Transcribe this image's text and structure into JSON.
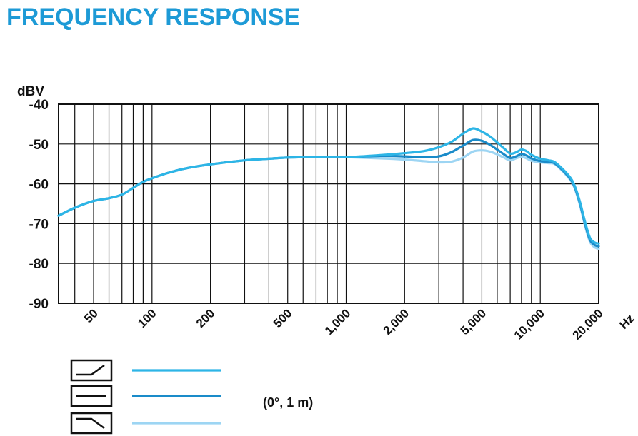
{
  "chart_data": {
    "type": "line",
    "title": "FREQUENCY RESPONSE",
    "ylabel": "dBV",
    "xlabel": "Hz",
    "xscale": "log",
    "xlim": [
      33,
      20000
    ],
    "ylim": [
      -90,
      -40
    ],
    "grid": true,
    "y_ticks": [
      -40,
      -50,
      -60,
      -70,
      -80,
      -90
    ],
    "y_tick_labels": [
      "-40",
      "-50",
      "-60",
      "-70",
      "-80",
      "-90"
    ],
    "x_tick_labels": [
      {
        "value": 50,
        "label": "50"
      },
      {
        "value": 100,
        "label": "100"
      },
      {
        "value": 200,
        "label": "200"
      },
      {
        "value": 500,
        "label": "500"
      },
      {
        "value": 1000,
        "label": "1,000"
      },
      {
        "value": 2000,
        "label": "2,000"
      },
      {
        "value": 5000,
        "label": "5,000"
      },
      {
        "value": 10000,
        "label": "10,000"
      },
      {
        "value": 20000,
        "label": "20,000"
      }
    ],
    "x_grid": [
      40,
      50,
      60,
      70,
      80,
      90,
      100,
      200,
      300,
      400,
      500,
      600,
      700,
      800,
      900,
      1000,
      2000,
      3000,
      4000,
      5000,
      6000,
      7000,
      8000,
      9000,
      10000,
      20000
    ],
    "legend_note": "(0°, 1 m)",
    "series": [
      {
        "icon": "presence-boost-icon",
        "color": "#2db5e6",
        "x": [
          33,
          40,
          50,
          60,
          70,
          80,
          90,
          100,
          120,
          150,
          200,
          300,
          400,
          500,
          700,
          1000,
          1500,
          2000,
          2500,
          3000,
          3500,
          4000,
          4500,
          5000,
          5500,
          6000,
          6500,
          7000,
          7500,
          8000,
          8500,
          9000,
          10000,
          11000,
          12000,
          14000,
          15000,
          16000,
          17000,
          18000,
          19000,
          20000
        ],
        "y": [
          -68,
          -66,
          -64.3,
          -63.6,
          -62.7,
          -61,
          -59.5,
          -58.6,
          -57.3,
          -56.1,
          -55.1,
          -54.1,
          -53.7,
          -53.4,
          -53.3,
          -53.3,
          -52.8,
          -52.3,
          -51.8,
          -50.8,
          -49.4,
          -47.4,
          -46.1,
          -46.9,
          -48.1,
          -49.6,
          -51.1,
          -52.4,
          -52.1,
          -51.4,
          -51.8,
          -52.7,
          -53.7,
          -54.1,
          -54.7,
          -57.9,
          -60.4,
          -64.5,
          -69.5,
          -73.5,
          -74.7,
          -75
        ]
      },
      {
        "icon": "flat-icon",
        "color": "#1a8bc9",
        "x": [
          33,
          40,
          50,
          60,
          70,
          80,
          90,
          100,
          120,
          150,
          200,
          300,
          400,
          500,
          700,
          1000,
          1500,
          2000,
          2500,
          3000,
          3500,
          4000,
          4500,
          5000,
          5500,
          6000,
          6500,
          7000,
          7500,
          8000,
          8500,
          9000,
          10000,
          11000,
          12000,
          14000,
          15000,
          16000,
          17000,
          18000,
          19000,
          20000
        ],
        "y": [
          -68,
          -66,
          -64.3,
          -63.6,
          -62.7,
          -61,
          -59.5,
          -58.6,
          -57.3,
          -56.1,
          -55.1,
          -54.1,
          -53.7,
          -53.4,
          -53.3,
          -53.3,
          -53,
          -53.1,
          -53.3,
          -53.1,
          -52,
          -50.4,
          -49,
          -49.2,
          -50.2,
          -51.4,
          -52.6,
          -53.5,
          -53.1,
          -52.5,
          -52.9,
          -53.6,
          -54.3,
          -54.5,
          -55,
          -58.2,
          -60.7,
          -64.9,
          -70,
          -74,
          -75.3,
          -75.7
        ]
      },
      {
        "icon": "low-cut-icon",
        "color": "#9dd5f3",
        "x": [
          1000,
          1500,
          2000,
          2500,
          3000,
          3500,
          4000,
          4500,
          5000,
          5500,
          6000,
          6500,
          7000,
          7500,
          8000,
          8500,
          9000,
          10000,
          11000,
          12000,
          14000,
          15000,
          16000,
          17000,
          18000,
          19000,
          20000
        ],
        "y": [
          -53.3,
          -53.6,
          -53.9,
          -54.3,
          -54.6,
          -54.4,
          -53.4,
          -51.9,
          -51.6,
          -51.9,
          -52.6,
          -53.4,
          -54.1,
          -53.6,
          -53.2,
          -53.6,
          -54.2,
          -54.6,
          -54.8,
          -55.2,
          -58.5,
          -61,
          -65.3,
          -70.5,
          -74.5,
          -75.9,
          -76.3
        ]
      }
    ]
  }
}
